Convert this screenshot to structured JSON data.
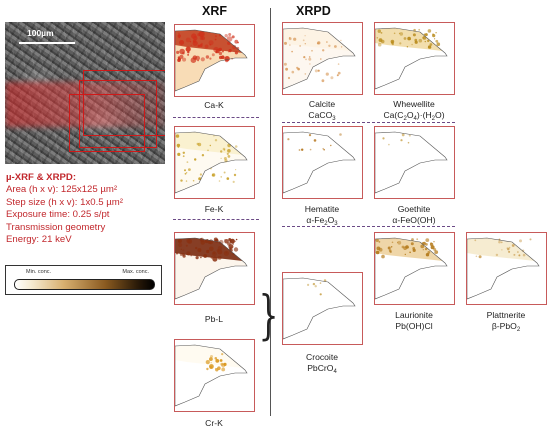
{
  "micrograph": {
    "scale_label": "100µm"
  },
  "parameters": {
    "title": "µ-XRF & XRPD:",
    "lines": [
      "Area (h x v): 125x125 µm²",
      "Step size (h x v): 1x0.5 µm²",
      "Exposure time: 0.25 s/pt",
      "Transmission geometry",
      "Energy: 21 keV"
    ]
  },
  "colorbar": {
    "min_label": "Min. conc.",
    "max_label": "Max. conc."
  },
  "headers": {
    "xrf": "XRF",
    "xrpd": "XRPD"
  },
  "xrf_maps": [
    {
      "element": "Ca-K",
      "intensity": "high",
      "color": "#c0381a"
    },
    {
      "element": "Fe-K",
      "intensity": "low",
      "color": "#c8a028"
    },
    {
      "element": "Pb-L",
      "intensity": "high",
      "color": "#7a2a10"
    },
    {
      "element": "Cr-K",
      "intensity": "spot",
      "color": "#c8a028"
    }
  ],
  "xrpd_maps": [
    {
      "name": "Calcite",
      "formula_html": "CaCO<sub>3</sub>"
    },
    {
      "name": "Whewellite",
      "formula_html": "Ca(C<sub>2</sub>O<sub>4</sub>)·(H<sub>2</sub>O)"
    },
    {
      "name": "Hematite",
      "formula_html": "α-Fe<sub>2</sub>O<sub>3</sub>"
    },
    {
      "name": "Goethite",
      "formula_html": "α-FeO(OH)"
    },
    {
      "name": "Crocoite",
      "formula_html": "PbCrO<sub>4</sub>"
    },
    {
      "name": "Laurionite",
      "formula_html": "Pb(OH)Cl"
    },
    {
      "name": "Plattnerite",
      "formula_html": "β-PbO<sub>2</sub>"
    }
  ]
}
